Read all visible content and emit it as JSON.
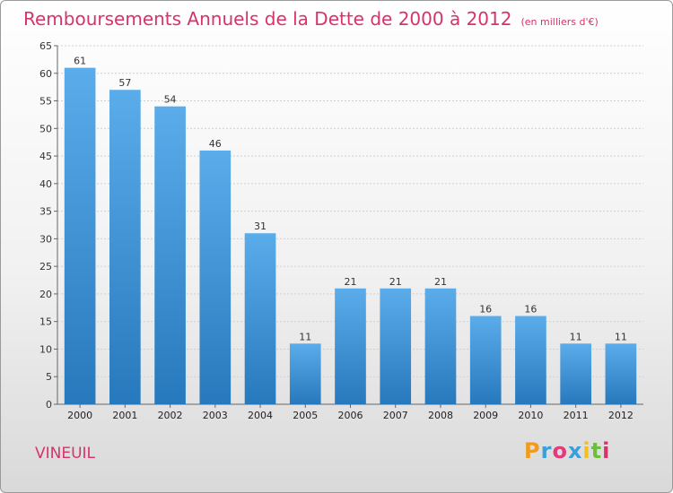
{
  "title": "Remboursements Annuels de la Dette de 2000 à 2012",
  "unit_note": "(en milliers d'€)",
  "commune": "VINEUIL",
  "logo": {
    "letters": [
      "P",
      "r",
      "o",
      "x",
      "i",
      "t",
      "i"
    ],
    "colors": [
      "#f29a1b",
      "#3aa0dc",
      "#e23a7a",
      "#3aa0dc",
      "#f0c020",
      "#6cbf3a",
      "#d6336c"
    ]
  },
  "colors": {
    "title": "#d6336c",
    "bar_light": "#5aacea",
    "bar_dark": "#2779bd",
    "grid": "#cfcfcf"
  },
  "chart_data": {
    "type": "bar",
    "categories": [
      "2000",
      "2001",
      "2002",
      "2003",
      "2004",
      "2005",
      "2006",
      "2007",
      "2008",
      "2009",
      "2010",
      "2011",
      "2012"
    ],
    "values": [
      61,
      57,
      54,
      46,
      31,
      11,
      21,
      21,
      21,
      16,
      16,
      11,
      11
    ],
    "ylim": [
      0,
      65
    ],
    "yticks": [
      0,
      5,
      10,
      15,
      20,
      25,
      30,
      35,
      40,
      45,
      50,
      55,
      60,
      65
    ],
    "grid": true,
    "data_labels": true
  }
}
